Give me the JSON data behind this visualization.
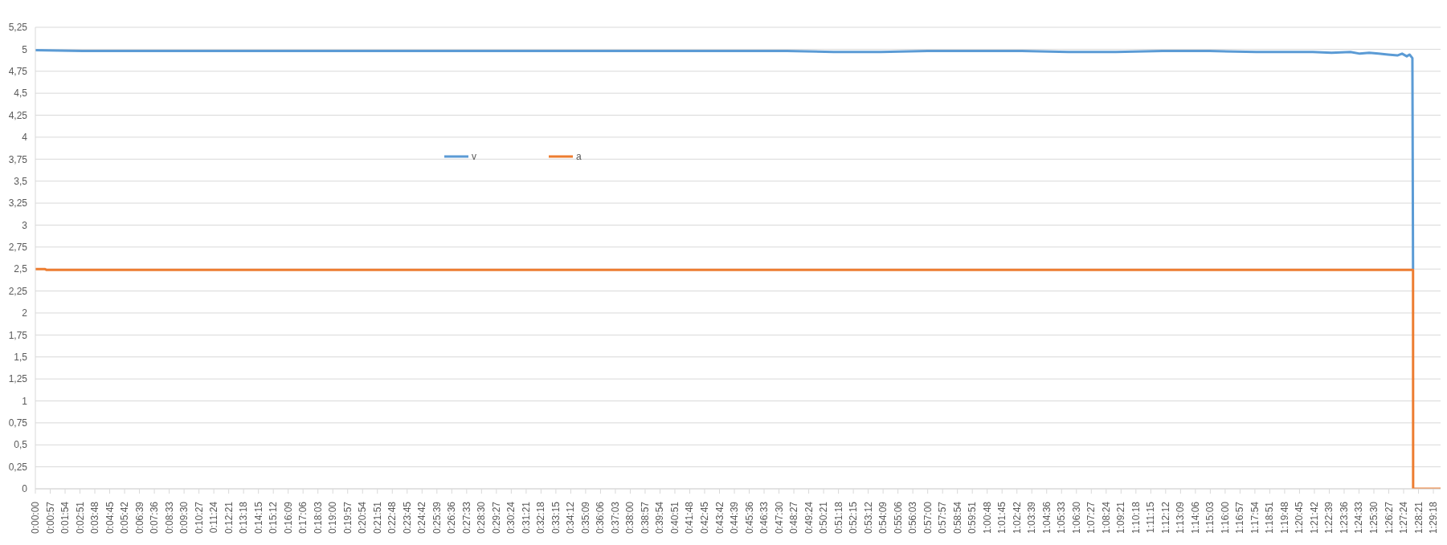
{
  "chart_data": {
    "type": "line",
    "legend": "top",
    "grid": "y",
    "marker": "none",
    "line_style": "solid",
    "ylim": [
      0,
      5.25
    ],
    "yticks": [
      0,
      {
        "value": 0.25,
        "label": "0,25"
      },
      {
        "value": 0.5,
        "label": "0,5"
      },
      {
        "value": 0.75,
        "label": "0,75"
      },
      1,
      {
        "value": 1.25,
        "label": "1,25"
      },
      {
        "value": 1.5,
        "label": "1,5"
      },
      {
        "value": 1.75,
        "label": "1,75"
      },
      2,
      {
        "value": 2.25,
        "label": "2,25"
      },
      {
        "value": 2.5,
        "label": "2,5"
      },
      {
        "value": 2.75,
        "label": "2,75"
      },
      3,
      {
        "value": 3.25,
        "label": "3,25"
      },
      {
        "value": 3.5,
        "label": "3,5"
      },
      {
        "value": 3.75,
        "label": "3,75"
      },
      4,
      {
        "value": 4.25,
        "label": "4,25"
      },
      {
        "value": 4.5,
        "label": "4,5"
      },
      {
        "value": 4.75,
        "label": "4,75"
      },
      5,
      {
        "value": 5.25,
        "label": "5,25"
      }
    ],
    "xlim": [
      0,
      1.496
    ],
    "xticks": [
      {
        "value": 0,
        "label": "0:00:00"
      },
      {
        "value": 0.015833,
        "label": "0:00:57"
      },
      {
        "value": 0.031667,
        "label": "0:01:54"
      },
      {
        "value": 0.0475,
        "label": "0:02:51"
      },
      {
        "value": 0.063333,
        "label": "0:03:48"
      },
      {
        "value": 0.079167,
        "label": "0:04:45"
      },
      {
        "value": 0.095,
        "label": "0:05:42"
      },
      {
        "value": 0.110833,
        "label": "0:06:39"
      },
      {
        "value": 0.126667,
        "label": "0:07:36"
      },
      {
        "value": 0.1425,
        "label": "0:08:33"
      },
      {
        "value": 0.158333,
        "label": "0:09:30"
      },
      {
        "value": 0.174167,
        "label": "0:10:27"
      },
      {
        "value": 0.19,
        "label": "0:11:24"
      },
      {
        "value": 0.205833,
        "label": "0:12:21"
      },
      {
        "value": 0.221667,
        "label": "0:13:18"
      },
      {
        "value": 0.2375,
        "label": "0:14:15"
      },
      {
        "value": 0.253333,
        "label": "0:15:12"
      },
      {
        "value": 0.269167,
        "label": "0:16:09"
      },
      {
        "value": 0.285,
        "label": "0:17:06"
      },
      {
        "value": 0.300833,
        "label": "0:18:03"
      },
      {
        "value": 0.316667,
        "label": "0:19:00"
      },
      {
        "value": 0.3325,
        "label": "0:19:57"
      },
      {
        "value": 0.348333,
        "label": "0:20:54"
      },
      {
        "value": 0.364167,
        "label": "0:21:51"
      },
      {
        "value": 0.38,
        "label": "0:22:48"
      },
      {
        "value": 0.395833,
        "label": "0:23:45"
      },
      {
        "value": 0.411667,
        "label": "0:24:42"
      },
      {
        "value": 0.4275,
        "label": "0:25:39"
      },
      {
        "value": 0.443333,
        "label": "0:26:36"
      },
      {
        "value": 0.459167,
        "label": "0:27:33"
      },
      {
        "value": 0.475,
        "label": "0:28:30"
      },
      {
        "value": 0.490833,
        "label": "0:29:27"
      },
      {
        "value": 0.506667,
        "label": "0:30:24"
      },
      {
        "value": 0.5225,
        "label": "0:31:21"
      },
      {
        "value": 0.538333,
        "label": "0:32:18"
      },
      {
        "value": 0.554167,
        "label": "0:33:15"
      },
      {
        "value": 0.57,
        "label": "0:34:12"
      },
      {
        "value": 0.585833,
        "label": "0:35:09"
      },
      {
        "value": 0.601667,
        "label": "0:36:06"
      },
      {
        "value": 0.6175,
        "label": "0:37:03"
      },
      {
        "value": 0.633333,
        "label": "0:38:00"
      },
      {
        "value": 0.649167,
        "label": "0:38:57"
      },
      {
        "value": 0.665,
        "label": "0:39:54"
      },
      {
        "value": 0.680833,
        "label": "0:40:51"
      },
      {
        "value": 0.696667,
        "label": "0:41:48"
      },
      {
        "value": 0.7125,
        "label": "0:42:45"
      },
      {
        "value": 0.728333,
        "label": "0:43:42"
      },
      {
        "value": 0.744167,
        "label": "0:44:39"
      },
      {
        "value": 0.76,
        "label": "0:45:36"
      },
      {
        "value": 0.775833,
        "label": "0:46:33"
      },
      {
        "value": 0.791667,
        "label": "0:47:30"
      },
      {
        "value": 0.8075,
        "label": "0:48:27"
      },
      {
        "value": 0.823333,
        "label": "0:49:24"
      },
      {
        "value": 0.839167,
        "label": "0:50:21"
      },
      {
        "value": 0.855,
        "label": "0:51:18"
      },
      {
        "value": 0.870833,
        "label": "0:52:15"
      },
      {
        "value": 0.886667,
        "label": "0:53:12"
      },
      {
        "value": 0.9025,
        "label": "0:54:09"
      },
      {
        "value": 0.918333,
        "label": "0:55:06"
      },
      {
        "value": 0.934167,
        "label": "0:56:03"
      },
      {
        "value": 0.95,
        "label": "0:57:00"
      },
      {
        "value": 0.965833,
        "label": "0:57:57"
      },
      {
        "value": 0.981667,
        "label": "0:58:54"
      },
      {
        "value": 0.9975,
        "label": "0:59:51"
      },
      {
        "value": 1.013333,
        "label": "1:00:48"
      },
      {
        "value": 1.029167,
        "label": "1:01:45"
      },
      {
        "value": 1.045,
        "label": "1:02:42"
      },
      {
        "value": 1.060833,
        "label": "1:03:39"
      },
      {
        "value": 1.076667,
        "label": "1:04:36"
      },
      {
        "value": 1.0925,
        "label": "1:05:33"
      },
      {
        "value": 1.108333,
        "label": "1:06:30"
      },
      {
        "value": 1.124167,
        "label": "1:07:27"
      },
      {
        "value": 1.14,
        "label": "1:08:24"
      },
      {
        "value": 1.155833,
        "label": "1:09:21"
      },
      {
        "value": 1.171667,
        "label": "1:10:18"
      },
      {
        "value": 1.1875,
        "label": "1:11:15"
      },
      {
        "value": 1.203333,
        "label": "1:12:12"
      },
      {
        "value": 1.219167,
        "label": "1:13:09"
      },
      {
        "value": 1.235,
        "label": "1:14:06"
      },
      {
        "value": 1.250833,
        "label": "1:15:03"
      },
      {
        "value": 1.266667,
        "label": "1:16:00"
      },
      {
        "value": 1.2825,
        "label": "1:16:57"
      },
      {
        "value": 1.298333,
        "label": "1:17:54"
      },
      {
        "value": 1.314167,
        "label": "1:18:51"
      },
      {
        "value": 1.33,
        "label": "1:19:48"
      },
      {
        "value": 1.345833,
        "label": "1:20:45"
      },
      {
        "value": 1.361667,
        "label": "1:21:42"
      },
      {
        "value": 1.3775,
        "label": "1:22:39"
      },
      {
        "value": 1.393333,
        "label": "1:23:36"
      },
      {
        "value": 1.409167,
        "label": "1:24:33"
      },
      {
        "value": 1.425,
        "label": "1:25:30"
      },
      {
        "value": 1.440833,
        "label": "1:26:27"
      },
      {
        "value": 1.456667,
        "label": "1:27:24"
      },
      {
        "value": 1.4725,
        "label": "1:28:21"
      },
      {
        "value": 1.488333,
        "label": "1:29:18"
      }
    ],
    "series": [
      {
        "name": "v",
        "color": "#5b9bd5",
        "x": [
          0,
          0.05,
          0.1,
          0.2,
          0.3,
          0.4,
          0.5,
          0.6,
          0.7,
          0.8,
          0.85,
          0.9,
          0.95,
          1.0,
          1.05,
          1.1,
          1.15,
          1.2,
          1.25,
          1.3,
          1.33,
          1.36,
          1.38,
          1.4,
          1.41,
          1.42,
          1.43,
          1.44,
          1.45,
          1.455,
          1.46,
          1.463,
          1.466,
          1.4667
        ],
        "values": [
          4.99,
          4.98,
          4.98,
          4.98,
          4.98,
          4.98,
          4.98,
          4.98,
          4.98,
          4.98,
          4.97,
          4.97,
          4.98,
          4.98,
          4.98,
          4.97,
          4.97,
          4.98,
          4.98,
          4.97,
          4.97,
          4.97,
          4.96,
          4.97,
          4.95,
          4.96,
          4.95,
          4.94,
          4.93,
          4.95,
          4.92,
          4.94,
          4.9,
          2.5
        ]
      },
      {
        "name": "a",
        "color": "#ed7d31",
        "x": [
          0,
          0.01,
          0.012,
          1.4667,
          1.4668,
          1.496
        ],
        "values": [
          2.5,
          2.5,
          2.49,
          2.49,
          0,
          0
        ]
      }
    ]
  }
}
